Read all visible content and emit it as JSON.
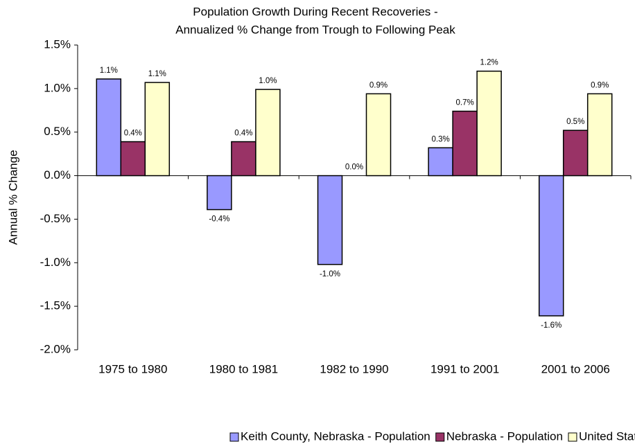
{
  "chart_data": {
    "type": "bar",
    "title": "Population Growth During Recent Recoveries -",
    "subtitle": "Annualized % Change from Trough to Following Peak",
    "y_label": "Annual % Change",
    "categories": [
      "1975 to 1980",
      "1980 to 1981",
      "1982 to 1990",
      "1991 to 2001",
      "2001 to 2006"
    ],
    "series": [
      {
        "name": "Keith County, Nebraska - Population",
        "color": "#9999ff",
        "values": [
          1.11,
          -0.39,
          -1.02,
          0.32,
          -1.61
        ],
        "value_labels": [
          "1.1%",
          "-0.4%",
          "-1.0%",
          "0.3%",
          "-1.6%"
        ]
      },
      {
        "name": "Nebraska - Population",
        "color": "#993366",
        "values": [
          0.39,
          0.39,
          0.0,
          0.74,
          0.52
        ],
        "value_labels": [
          "0.4%",
          "0.4%",
          "0.0%",
          "0.7%",
          "0.5%"
        ]
      },
      {
        "name": "United States - Population",
        "color": "#ffffcc",
        "values": [
          1.07,
          0.99,
          0.94,
          1.2,
          0.94
        ],
        "value_labels": [
          "1.1%",
          "1.0%",
          "0.9%",
          "1.2%",
          "0.9%"
        ]
      }
    ],
    "ylim": [
      -2.0,
      1.5
    ],
    "yticks": [
      {
        "value": -2.0,
        "label": "-2.0%"
      },
      {
        "value": -1.5,
        "label": "-1.5%"
      },
      {
        "value": -1.0,
        "label": "-1.0%"
      },
      {
        "value": -0.5,
        "label": "-0.5%"
      },
      {
        "value": 0.0,
        "label": "0.0%"
      },
      {
        "value": 0.5,
        "label": "0.5%"
      },
      {
        "value": 1.0,
        "label": "1.0%"
      },
      {
        "value": 1.5,
        "label": "1.5%"
      }
    ],
    "grid": false,
    "legend": "bottom"
  }
}
